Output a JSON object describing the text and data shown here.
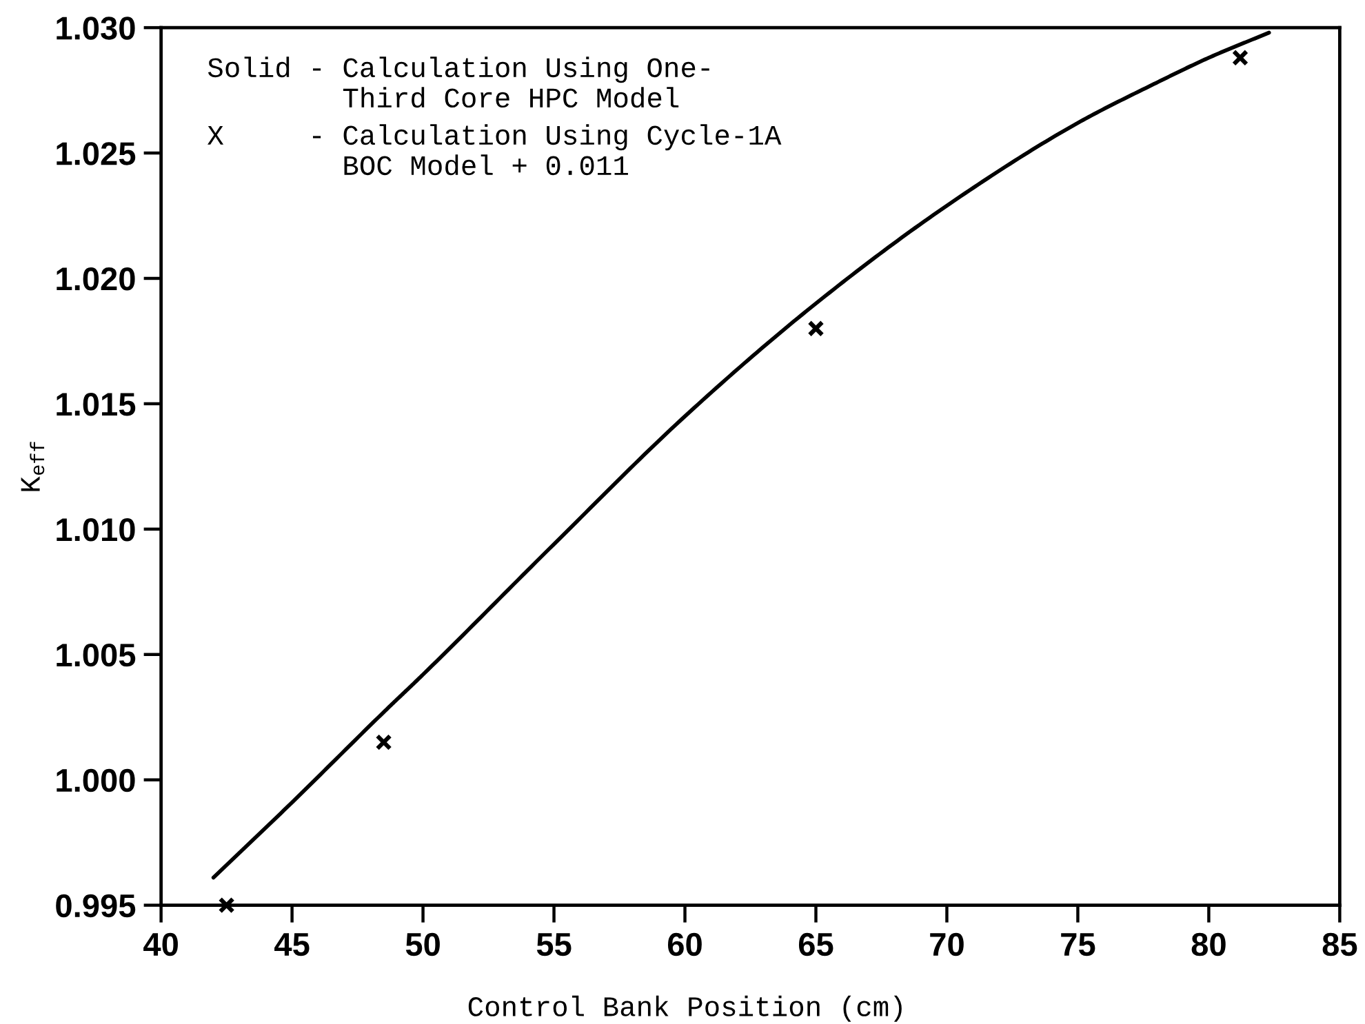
{
  "chart_data": {
    "type": "line",
    "xlabel": "Control Bank Position (cm)",
    "ylabel": "K$_{eff}$",
    "annotations": [
      "Solid - Calculation Using One-\n        Third Core HPC Model",
      "X     - Calculation Using Cycle-1A\n        BOC Model + 0.011"
    ],
    "xlim": [
      40,
      85
    ],
    "ylim": [
      0.995,
      1.03
    ],
    "xticks": [
      40,
      45,
      50,
      55,
      60,
      65,
      70,
      75,
      80,
      85
    ],
    "yticks": [
      0.995,
      {
        "value": 1.0,
        "label": "1.000"
      },
      1.005,
      {
        "value": 1.01,
        "label": "1.010"
      },
      1.015,
      {
        "value": 1.02,
        "label": "1.020"
      },
      1.025,
      {
        "value": 1.03,
        "label": "1.030"
      }
    ],
    "series": [
      {
        "color": "#000000",
        "line_style": "solid",
        "marker": "none",
        "x": [
          42.0,
          45,
          48.5,
          50,
          55,
          60,
          65,
          70,
          75,
          78,
          80,
          82.3
        ],
        "values": [
          0.9961,
          0.9991,
          1.0027,
          1.0042,
          1.0094,
          1.0145,
          1.019,
          1.0229,
          1.0262,
          1.0278,
          1.0288,
          1.0298
        ]
      },
      {
        "type": "scatter",
        "color": "#000000",
        "marker": "cross",
        "x": [
          42.5,
          48.5,
          65.0,
          81.2
        ],
        "values": [
          0.995,
          1.0015,
          1.018,
          1.0288
        ]
      }
    ]
  }
}
